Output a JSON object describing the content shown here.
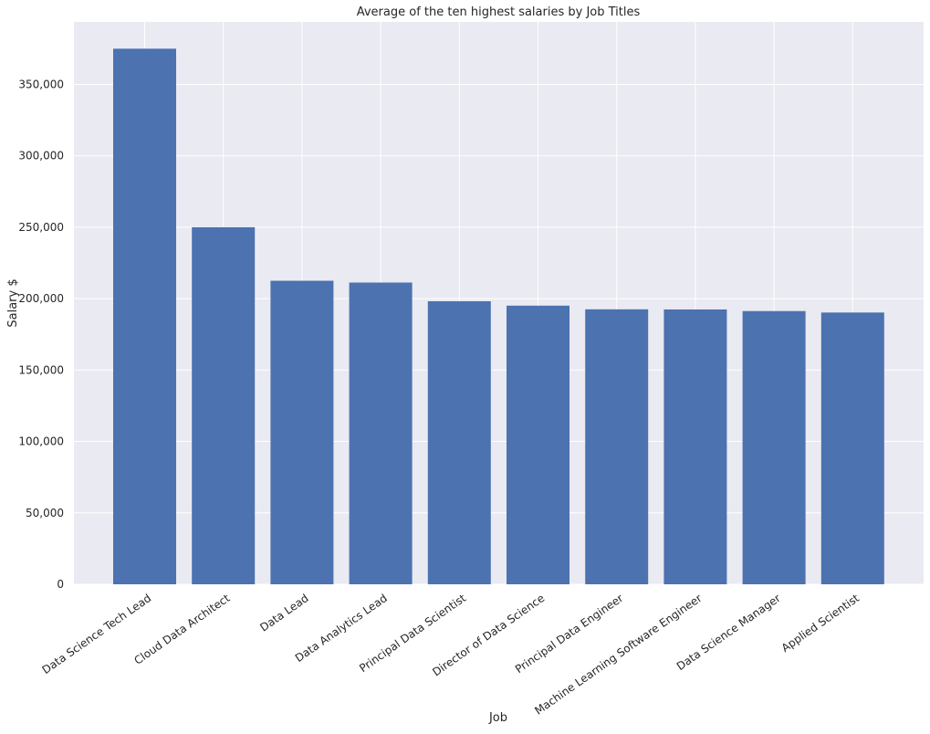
{
  "chart_data": {
    "type": "bar",
    "title": "Average of the ten highest salaries by Job Titles",
    "xlabel": "Job",
    "ylabel": "Salary $",
    "categories": [
      "Data Science Tech Lead",
      "Cloud Data Architect",
      "Data Lead",
      "Data Analytics Lead",
      "Principal Data Scientist",
      "Director of Data Science",
      "Principal Data Engineer",
      "Machine Learning Software Engineer",
      "Data Science Manager",
      "Applied Scientist"
    ],
    "values": [
      375000,
      250000,
      212500,
      211250,
      198171,
      195074,
      192500,
      192420,
      191279,
      190264
    ],
    "ylim": [
      0,
      393750
    ],
    "yticks": [
      0,
      50000,
      100000,
      150000,
      200000,
      250000,
      300000,
      350000
    ],
    "ytick_labels": [
      "0",
      "50,000",
      "100,000",
      "150,000",
      "200,000",
      "250,000",
      "300,000",
      "350,000"
    ],
    "grid": true,
    "colors": {
      "bar": "#4c72b0",
      "background": "#eaeaf2",
      "grid": "#ffffff"
    }
  }
}
